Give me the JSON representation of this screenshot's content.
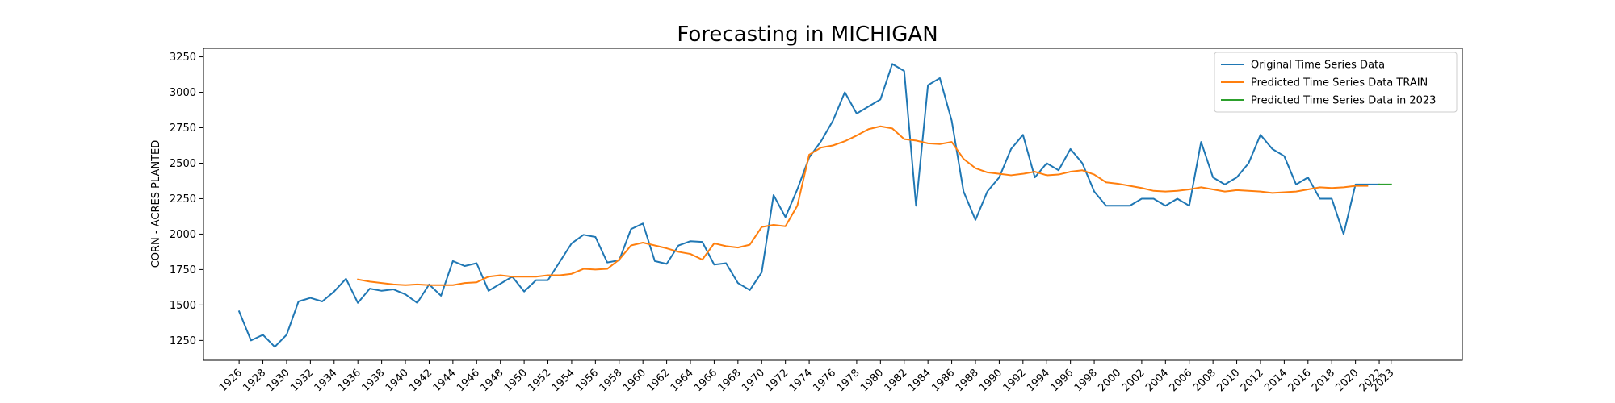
{
  "chart_data": {
    "type": "line",
    "title": "Forecasting in MICHIGAN",
    "xlabel": "",
    "ylabel": "CORN - ACRES PLANTED",
    "xlim": [
      1923,
      2029
    ],
    "ylim": [
      1110,
      3310
    ],
    "grid": false,
    "legend_position": "top-right",
    "x_ticks": [
      1926,
      1928,
      1930,
      1932,
      1934,
      1936,
      1938,
      1940,
      1942,
      1944,
      1946,
      1948,
      1950,
      1952,
      1954,
      1956,
      1958,
      1960,
      1962,
      1964,
      1966,
      1968,
      1970,
      1972,
      1974,
      1976,
      1978,
      1980,
      1982,
      1984,
      1986,
      1988,
      1990,
      1992,
      1994,
      1996,
      1998,
      2000,
      2002,
      2004,
      2006,
      2008,
      2010,
      2012,
      2014,
      2016,
      2018,
      2020,
      2022,
      2023
    ],
    "y_ticks": [
      1250,
      1500,
      1750,
      2000,
      2250,
      2500,
      2750,
      3000,
      3250
    ],
    "series": [
      {
        "name": "Original Time Series Data",
        "color": "#1f77b4",
        "x": [
          1926,
          1927,
          1928,
          1929,
          1930,
          1931,
          1932,
          1933,
          1934,
          1935,
          1936,
          1937,
          1938,
          1939,
          1940,
          1941,
          1942,
          1943,
          1944,
          1945,
          1946,
          1947,
          1948,
          1949,
          1950,
          1951,
          1952,
          1953,
          1954,
          1955,
          1956,
          1957,
          1958,
          1959,
          1960,
          1961,
          1962,
          1963,
          1964,
          1965,
          1966,
          1967,
          1968,
          1969,
          1970,
          1971,
          1972,
          1973,
          1974,
          1975,
          1976,
          1977,
          1978,
          1979,
          1980,
          1981,
          1982,
          1983,
          1984,
          1985,
          1986,
          1987,
          1988,
          1989,
          1990,
          1991,
          1992,
          1993,
          1994,
          1995,
          1996,
          1997,
          1998,
          1999,
          2000,
          2001,
          2002,
          2003,
          2004,
          2005,
          2006,
          2007,
          2008,
          2009,
          2010,
          2011,
          2012,
          2013,
          2014,
          2015,
          2016,
          2017,
          2018,
          2019,
          2020,
          2021,
          2022
        ],
        "y": [
          1455,
          1250,
          1290,
          1205,
          1290,
          1525,
          1550,
          1525,
          1595,
          1685,
          1515,
          1615,
          1600,
          1610,
          1575,
          1515,
          1645,
          1565,
          1810,
          1775,
          1795,
          1600,
          1650,
          1700,
          1595,
          1675,
          1675,
          1805,
          1935,
          1995,
          1980,
          1800,
          1815,
          2035,
          2075,
          1810,
          1790,
          1920,
          1950,
          1945,
          1785,
          1795,
          1655,
          1605,
          1730,
          2275,
          2120,
          2315,
          2540,
          2655,
          2800,
          3000,
          2850,
          2900,
          2950,
          3200,
          3150,
          2200,
          3050,
          3100,
          2800,
          2300,
          2100,
          2300,
          2400,
          2600,
          2700,
          2400,
          2500,
          2450,
          2600,
          2500,
          2300,
          2200,
          2200,
          2200,
          2250,
          2250,
          2200,
          2250,
          2200,
          2650,
          2400,
          2350,
          2400,
          2500,
          2700,
          2600,
          2550,
          2350,
          2400,
          2250,
          2250,
          2000,
          2350,
          2350,
          2350
        ]
      },
      {
        "name": "Predicted Time Series Data TRAIN",
        "color": "#ff7f0e",
        "x": [
          1936,
          1937,
          1938,
          1939,
          1940,
          1941,
          1942,
          1943,
          1944,
          1945,
          1946,
          1947,
          1948,
          1949,
          1950,
          1951,
          1952,
          1953,
          1954,
          1955,
          1956,
          1957,
          1958,
          1959,
          1960,
          1961,
          1962,
          1963,
          1964,
          1965,
          1966,
          1967,
          1968,
          1969,
          1970,
          1971,
          1972,
          1973,
          1974,
          1975,
          1976,
          1977,
          1978,
          1979,
          1980,
          1981,
          1982,
          1983,
          1984,
          1985,
          1986,
          1987,
          1988,
          1989,
          1990,
          1991,
          1992,
          1993,
          1994,
          1995,
          1996,
          1997,
          1998,
          1999,
          2000,
          2001,
          2002,
          2003,
          2004,
          2005,
          2006,
          2007,
          2008,
          2009,
          2010,
          2011,
          2012,
          2013,
          2014,
          2015,
          2016,
          2017,
          2018,
          2019,
          2020,
          2021
        ],
        "y": [
          1680,
          1665,
          1655,
          1645,
          1640,
          1645,
          1640,
          1640,
          1640,
          1655,
          1660,
          1700,
          1710,
          1700,
          1700,
          1700,
          1710,
          1710,
          1720,
          1755,
          1750,
          1755,
          1820,
          1920,
          1940,
          1920,
          1900,
          1875,
          1860,
          1820,
          1935,
          1915,
          1905,
          1925,
          2050,
          2065,
          2055,
          2200,
          2560,
          2610,
          2625,
          2655,
          2695,
          2740,
          2760,
          2745,
          2670,
          2660,
          2640,
          2635,
          2650,
          2530,
          2465,
          2435,
          2425,
          2415,
          2425,
          2440,
          2415,
          2420,
          2440,
          2450,
          2420,
          2365,
          2355,
          2340,
          2325,
          2305,
          2300,
          2305,
          2315,
          2330,
          2315,
          2300,
          2310,
          2305,
          2300,
          2290,
          2295,
          2300,
          2315,
          2330,
          2325,
          2330,
          2340,
          2340
        ]
      },
      {
        "name": "Predicted Time Series Data in 2023",
        "color": "#2ca02c",
        "x": [
          2022,
          2023
        ],
        "y": [
          2350,
          2350
        ]
      }
    ]
  }
}
